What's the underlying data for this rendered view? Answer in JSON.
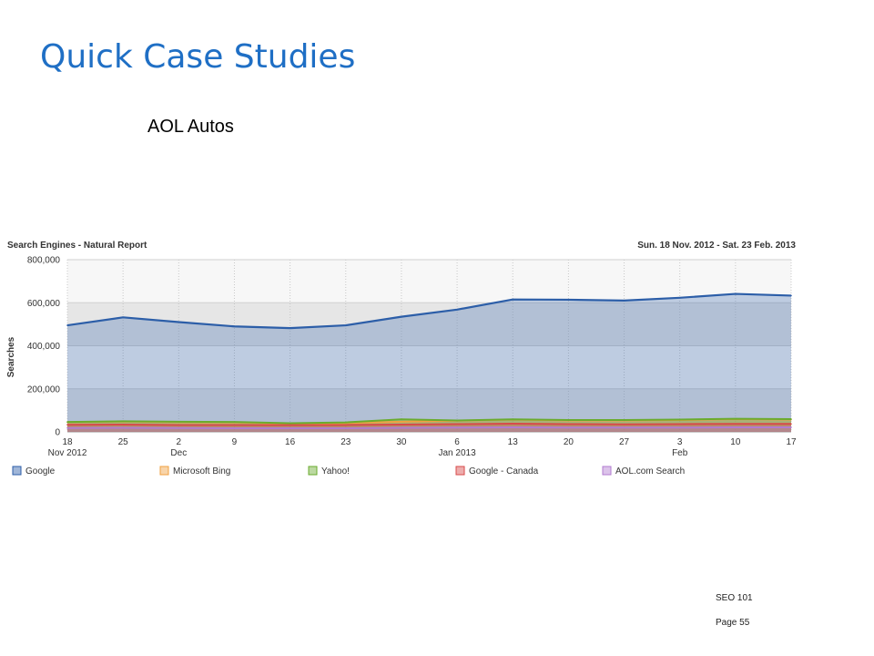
{
  "slide": {
    "title": "Quick Case Studies",
    "subtitle": "AOL Autos",
    "footer_course": "SEO 101",
    "footer_page": "Page 55"
  },
  "chart_data": {
    "type": "area",
    "title": "Search Engines - Natural Report",
    "date_range": "Sun. 18 Nov. 2012 - Sat. 23 Feb. 2013",
    "ylabel": "Searches",
    "ylim": [
      0,
      800000
    ],
    "yticks": [
      0,
      200000,
      400000,
      600000,
      800000
    ],
    "ytick_labels": [
      "0",
      "200,000",
      "400,000",
      "600,000",
      "800,000"
    ],
    "x": [
      "2012-11-18",
      "2012-11-25",
      "2012-12-02",
      "2012-12-09",
      "2012-12-16",
      "2012-12-23",
      "2012-12-30",
      "2013-01-06",
      "2013-01-13",
      "2013-01-20",
      "2013-01-27",
      "2013-02-03",
      "2013-02-10",
      "2013-02-17"
    ],
    "xtick_labels": [
      {
        "day": "18",
        "month": "Nov 2012"
      },
      {
        "day": "25",
        "month": ""
      },
      {
        "day": "2",
        "month": "Dec"
      },
      {
        "day": "9",
        "month": ""
      },
      {
        "day": "16",
        "month": ""
      },
      {
        "day": "23",
        "month": ""
      },
      {
        "day": "30",
        "month": ""
      },
      {
        "day": "6",
        "month": "Jan 2013"
      },
      {
        "day": "13",
        "month": ""
      },
      {
        "day": "20",
        "month": ""
      },
      {
        "day": "27",
        "month": ""
      },
      {
        "day": "3",
        "month": "Feb"
      },
      {
        "day": "10",
        "month": ""
      },
      {
        "day": "17",
        "month": ""
      }
    ],
    "series": [
      {
        "name": "Google",
        "color": "#2c5ea8",
        "values": [
          495000,
          532000,
          510000,
          490000,
          482000,
          495000,
          535000,
          568000,
          615000,
          614000,
          610000,
          623000,
          641000,
          633000
        ]
      },
      {
        "name": "Microsoft Bing",
        "color": "#f0a040",
        "values": [
          45000,
          48000,
          45000,
          44000,
          38000,
          41000,
          47000,
          52000,
          57000,
          53000,
          53000,
          55000,
          59000,
          57000
        ]
      },
      {
        "name": "Yahoo!",
        "color": "#6aab2e",
        "values": [
          46000,
          49000,
          47000,
          46000,
          40000,
          44000,
          58000,
          53000,
          58000,
          55000,
          55000,
          57000,
          61000,
          59000
        ]
      },
      {
        "name": "Google - Canada",
        "color": "#d84a4a",
        "values": [
          33000,
          34000,
          32000,
          32000,
          31000,
          32000,
          34000,
          36000,
          38000,
          36000,
          35000,
          36000,
          37000,
          37000
        ]
      },
      {
        "name": "AOL.com Search",
        "color": "#b27bd0",
        "values": [
          18000,
          19000,
          18000,
          17000,
          17000,
          17000,
          19000,
          20000,
          21000,
          20000,
          20000,
          20000,
          21000,
          21000
        ]
      }
    ],
    "grid": true,
    "legend_position": "bottom"
  }
}
